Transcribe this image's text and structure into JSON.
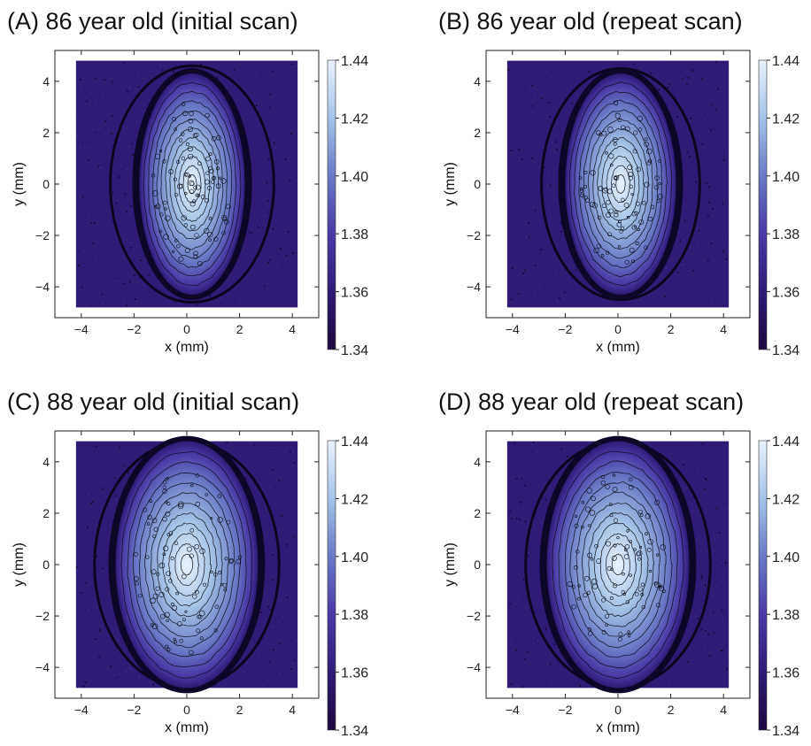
{
  "chart_data": [
    {
      "type": "heatmap",
      "title": "(A) 86 year old (initial scan)",
      "xlabel": "x (mm)",
      "ylabel": "y (mm)",
      "xlim": [
        -5,
        5
      ],
      "ylim": [
        -5.2,
        5.2
      ],
      "xticks": [
        -4,
        -2,
        0,
        2,
        4
      ],
      "yticks": [
        -4,
        -2,
        0,
        2,
        4
      ],
      "colorbar": {
        "ticks": [
          1.34,
          1.36,
          1.38,
          1.4,
          1.42,
          1.44
        ],
        "range": [
          1.34,
          1.44
        ]
      },
      "data_extent": {
        "x": [
          -4.2,
          4.2
        ],
        "y": [
          -4.8,
          4.8
        ]
      },
      "lens_center": [
        0.2,
        0.0
      ],
      "lens_radii": [
        2.0,
        4.3
      ],
      "capsule_radii": [
        3.1,
        4.6
      ],
      "background_value": 1.345,
      "peak_value": 1.43,
      "grid": false
    },
    {
      "type": "heatmap",
      "title": "(B) 86 year old (repeat scan)",
      "xlabel": "x (mm)",
      "ylabel": "y (mm)",
      "xlim": [
        -5,
        5
      ],
      "ylim": [
        -5.2,
        5.2
      ],
      "xticks": [
        -4,
        -2,
        0,
        2,
        4
      ],
      "yticks": [
        -4,
        -2,
        0,
        2,
        4
      ],
      "colorbar": {
        "ticks": [
          1.34,
          1.36,
          1.38,
          1.4,
          1.42,
          1.44
        ],
        "range": [
          1.34,
          1.44
        ]
      },
      "data_extent": {
        "x": [
          -4.2,
          4.2
        ],
        "y": [
          -4.8,
          4.8
        ]
      },
      "lens_center": [
        0.1,
        0.0
      ],
      "lens_radii": [
        2.1,
        4.3
      ],
      "capsule_radii": [
        3.0,
        4.5
      ],
      "background_value": 1.345,
      "peak_value": 1.43,
      "grid": false
    },
    {
      "type": "heatmap",
      "title": "(C) 88 year old (initial scan)",
      "xlabel": "x (mm)",
      "ylabel": "y (mm)",
      "xlim": [
        -5,
        5
      ],
      "ylim": [
        -5.2,
        5.2
      ],
      "xticks": [
        -4,
        -2,
        0,
        2,
        4
      ],
      "yticks": [
        -4,
        -2,
        0,
        2,
        4
      ],
      "colorbar": {
        "ticks": [
          1.34,
          1.36,
          1.38,
          1.4,
          1.42,
          1.44
        ],
        "range": [
          1.34,
          1.44
        ]
      },
      "data_extent": {
        "x": [
          -4.2,
          4.2
        ],
        "y": [
          -4.8,
          4.8
        ]
      },
      "lens_center": [
        0.0,
        0.0
      ],
      "lens_radii": [
        2.7,
        4.8
      ],
      "capsule_radii": [
        3.5,
        4.8
      ],
      "background_value": 1.345,
      "peak_value": 1.425,
      "grid": false
    },
    {
      "type": "heatmap",
      "title": "(D) 88 year old (repeat scan)",
      "xlabel": "x (mm)",
      "ylabel": "y (mm)",
      "xlim": [
        -5,
        5
      ],
      "ylim": [
        -5.2,
        5.2
      ],
      "xticks": [
        -4,
        -2,
        0,
        2,
        4
      ],
      "yticks": [
        -4,
        -2,
        0,
        2,
        4
      ],
      "colorbar": {
        "ticks": [
          1.34,
          1.36,
          1.38,
          1.4,
          1.42,
          1.44
        ],
        "range": [
          1.34,
          1.44
        ]
      },
      "data_extent": {
        "x": [
          -4.2,
          4.2
        ],
        "y": [
          -4.8,
          4.8
        ]
      },
      "lens_center": [
        0.0,
        0.0
      ],
      "lens_radii": [
        2.7,
        4.8
      ],
      "capsule_radii": [
        3.5,
        4.8
      ],
      "background_value": 1.345,
      "peak_value": 1.425,
      "grid": false
    }
  ],
  "colors": {
    "colormap": [
      "#1d0a3f",
      "#2f1a76",
      "#4a3aa5",
      "#6a79c6",
      "#a6c3e8",
      "#eaf3fd"
    ],
    "contour_line": "#0a0a14",
    "frame": "#222222"
  }
}
